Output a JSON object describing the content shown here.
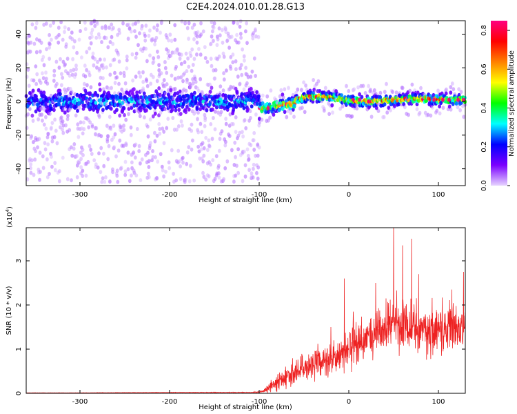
{
  "figure": {
    "title": "C2E4.2024.010.01.28.G13"
  },
  "chart_data": [
    {
      "type": "heatmap",
      "xlabel": "Height of straight line (km)",
      "ylabel": "Frequency (Hz)",
      "xlim": [
        -360,
        130
      ],
      "ylim": [
        -50,
        48
      ],
      "xticks": [
        -300,
        -200,
        -100,
        0,
        100
      ],
      "yticks": [
        -40,
        -20,
        0,
        20,
        40
      ],
      "grid": false,
      "colorbar": {
        "label": "Normalized spectral amplitude",
        "range": [
          0.0,
          0.85
        ],
        "ticks": [
          0.0,
          0.2,
          0.4,
          0.6,
          0.8
        ],
        "tick_labels": [
          "0.0",
          "0.2",
          "0.4",
          "0.6",
          "0.8"
        ],
        "colormap": [
          "#e6d4ff",
          "#7a00ff",
          "#0000ff",
          "#00ffff",
          "#00ff00",
          "#ffff00",
          "#ff8000",
          "#ff0000",
          "#ff0080"
        ]
      },
      "regions": [
        {
          "x_range": [
            -360,
            -100
          ],
          "center_freq": 0,
          "band_halfwidth": 8,
          "noise_halfwidth": 48,
          "peak_amplitude": 0.28
        },
        {
          "x_range": [
            -100,
            -60
          ],
          "center_freq": -4,
          "band_halfwidth": 5,
          "noise_halfwidth": 10,
          "peak_amplitude": 0.8
        },
        {
          "x_range": [
            -60,
            130
          ],
          "center_freq": 1,
          "band_halfwidth": 4,
          "noise_halfwidth": 10,
          "peak_amplitude": 0.82
        }
      ]
    },
    {
      "type": "line",
      "xlabel": "Height of straight line (km)",
      "ylabel": "SNR (10 * v/v)",
      "y_multiplier_label": "(x10",
      "y_multiplier_exponent": "4",
      "xlim": [
        -360,
        130
      ],
      "ylim": [
        0,
        3.75
      ],
      "xticks": [
        -300,
        -200,
        -100,
        0,
        100
      ],
      "yticks": [
        0,
        1,
        2,
        3
      ],
      "grid": false,
      "series": [
        {
          "color": "#ee2222",
          "x": [
            -360,
            -300,
            -200,
            -110,
            -100,
            -95,
            -90,
            -80,
            -70,
            -60,
            -50,
            -40,
            -30,
            -20,
            -10,
            0,
            10,
            20,
            30,
            40,
            50,
            60,
            70,
            80,
            90,
            100,
            110,
            120,
            130
          ],
          "mean": [
            0.01,
            0.01,
            0.02,
            0.02,
            0.03,
            0.05,
            0.12,
            0.25,
            0.35,
            0.45,
            0.55,
            0.62,
            0.7,
            0.78,
            0.85,
            1.0,
            1.1,
            1.2,
            1.35,
            1.45,
            1.55,
            1.6,
            1.5,
            1.45,
            1.4,
            1.45,
            1.5,
            1.5,
            1.55
          ],
          "spread": [
            0.005,
            0.005,
            0.005,
            0.01,
            0.02,
            0.05,
            0.15,
            0.25,
            0.3,
            0.35,
            0.4,
            0.4,
            0.45,
            0.45,
            0.5,
            0.6,
            0.6,
            0.6,
            0.7,
            0.75,
            0.8,
            0.8,
            0.75,
            0.7,
            0.7,
            0.7,
            0.7,
            0.65,
            0.65
          ],
          "peaks": [
            [
              -20,
              1.5
            ],
            [
              -5,
              2.6
            ],
            [
              5,
              1.85
            ],
            [
              30,
              2.5
            ],
            [
              50,
              3.75
            ],
            [
              60,
              3.35
            ],
            [
              70,
              3.5
            ],
            [
              78,
              2.7
            ],
            [
              115,
              2.35
            ],
            [
              128,
              2.75
            ]
          ]
        }
      ]
    }
  ]
}
